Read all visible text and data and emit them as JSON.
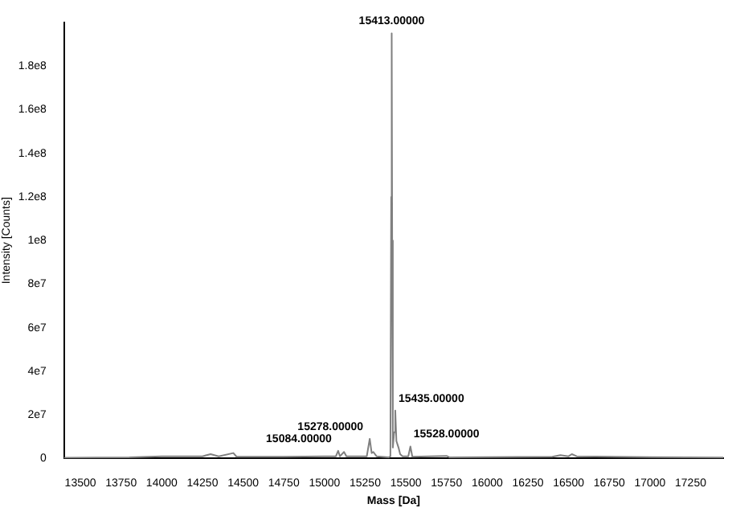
{
  "chart_data": {
    "type": "line",
    "xlabel": "Mass [Da]",
    "ylabel": "Intensity [Counts]",
    "xlim": [
      13400,
      17450
    ],
    "xticks": [
      13500,
      13750,
      14000,
      14250,
      14500,
      14750,
      15000,
      15250,
      15500,
      15750,
      16000,
      16250,
      16500,
      16750,
      17000,
      17250
    ],
    "ylim": [
      0,
      200000000
    ],
    "yticks": [
      {
        "value": 0,
        "label": "0"
      },
      {
        "value": 20000000,
        "label": "2e7"
      },
      {
        "value": 40000000,
        "label": "4e7"
      },
      {
        "value": 60000000,
        "label": "6e7"
      },
      {
        "value": 80000000,
        "label": "8e7"
      },
      {
        "value": 100000000,
        "label": "1e8"
      },
      {
        "value": 120000000,
        "label": "1.2e8"
      },
      {
        "value": 140000000,
        "label": "1.4e8"
      },
      {
        "value": 160000000,
        "label": "1.6e8"
      },
      {
        "value": 180000000,
        "label": "1.8e8"
      }
    ],
    "grid": false,
    "legend": false,
    "marker": "none",
    "line_style": "solid",
    "series": [
      {
        "color": "#808080",
        "x": [
          13400,
          13800,
          14000,
          14250,
          14300,
          14350,
          14440,
          14460,
          14750,
          15000,
          15070,
          15084,
          15095,
          15120,
          15135,
          15260,
          15278,
          15290,
          15300,
          15320,
          15395,
          15405,
          15410,
          15413,
          15416,
          15420,
          15428,
          15435,
          15442,
          15455,
          15465,
          15480,
          15515,
          15528,
          15540,
          15750,
          15770,
          16400,
          16450,
          16500,
          16520,
          16550,
          17000,
          17450
        ],
        "values": [
          300000,
          500000,
          1000000,
          1000000,
          2000000,
          1000000,
          2500000,
          800000,
          800000,
          1000000,
          1000000,
          3500000,
          1000000,
          3000000,
          1000000,
          1000000,
          9000000,
          2500000,
          3000000,
          1000000,
          500000,
          1000000,
          120000000,
          195000000,
          100000000,
          5000000,
          12000000,
          22000000,
          8000000,
          5000000,
          2000000,
          1000000,
          1000000,
          5500000,
          800000,
          1200000,
          500000,
          800000,
          1500000,
          1000000,
          2000000,
          1000000,
          600000,
          400000
        ]
      }
    ],
    "annotations": [
      {
        "text": "15413.00000",
        "x": 15413,
        "y": 195000000
      },
      {
        "text": "15435.00000",
        "x": 15435,
        "y": 22000000
      },
      {
        "text": "15278.00000",
        "x": 15278,
        "y": 9000000
      },
      {
        "text": "15528.00000",
        "x": 15528,
        "y": 5500000
      },
      {
        "text": "15084.00000",
        "x": 15084,
        "y": 3500000
      }
    ]
  }
}
